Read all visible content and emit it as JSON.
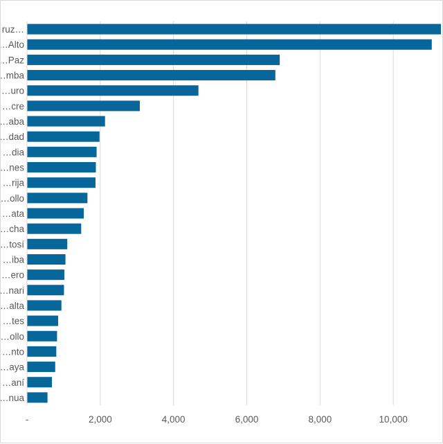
{
  "chart_data": {
    "type": "bar",
    "orientation": "horizontal",
    "title": "",
    "xlabel": "",
    "ylabel": "",
    "categories": [
      "…ruz…",
      "…Alto",
      "…Paz",
      "…mba",
      "…uro",
      "…cre",
      "…aba",
      "…dad",
      "…dia",
      "…nes",
      "…rija",
      "…ollo",
      "…ata",
      "…cha",
      "…tosí",
      "…iba",
      "…ero",
      "…nari",
      "…alta",
      "…tes",
      "…ollo",
      "…nto",
      "…aya",
      "…aní",
      "…nua"
    ],
    "values": [
      11300,
      11050,
      6900,
      6780,
      4680,
      3080,
      2130,
      1980,
      1900,
      1880,
      1870,
      1650,
      1550,
      1480,
      1100,
      1050,
      1020,
      1010,
      940,
      850,
      820,
      800,
      770,
      680,
      560
    ],
    "xlim": [
      0,
      11300
    ],
    "xticks": [
      0,
      2000,
      4000,
      6000,
      8000,
      10000
    ],
    "xtick_labels": [
      "-",
      "2,000",
      "4,000",
      "6,000",
      "8,000",
      "10,000"
    ],
    "grid": "vertical",
    "legend": "none",
    "bar_color": "#07669a",
    "grid_color": "#d9d9d9"
  }
}
